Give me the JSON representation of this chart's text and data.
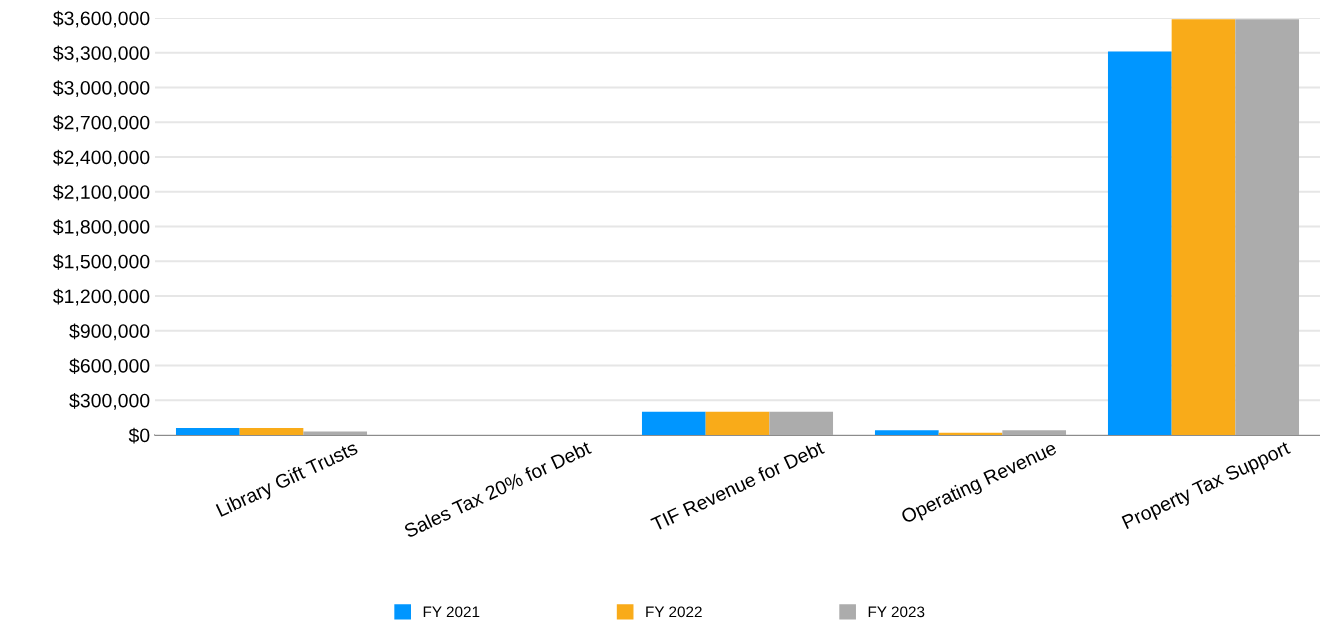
{
  "chart_data": {
    "type": "bar",
    "categories": [
      "Library Gift Trusts",
      "Sales Tax 20% for Debt",
      "TIF Revenue for Debt",
      "Operating Revenue",
      "Property Tax Support"
    ],
    "series": [
      {
        "name": "FY 2021",
        "color": "#0096ff",
        "values": [
          60000,
          0,
          200000,
          40000,
          3310000
        ]
      },
      {
        "name": "FY 2022",
        "color": "#f9ab19",
        "values": [
          60000,
          0,
          200000,
          20000,
          3590000
        ]
      },
      {
        "name": "FY 2023",
        "color": "#acacac",
        "values": [
          30000,
          0,
          200000,
          40000,
          3590000
        ]
      }
    ],
    "ylim": [
      0,
      3600000
    ],
    "yticks": [
      {
        "value": 0,
        "label": "$0"
      },
      {
        "value": 300000,
        "label": "$300,000"
      },
      {
        "value": 600000,
        "label": "$600,000"
      },
      {
        "value": 900000,
        "label": "$900,000"
      },
      {
        "value": 1200000,
        "label": "$1,200,000"
      },
      {
        "value": 1500000,
        "label": "$1,500,000"
      },
      {
        "value": 1800000,
        "label": "$1,800,000"
      },
      {
        "value": 2100000,
        "label": "$2,100,000"
      },
      {
        "value": 2400000,
        "label": "$2,400,000"
      },
      {
        "value": 2700000,
        "label": "$2,700,000"
      },
      {
        "value": 3000000,
        "label": "$3,000,000"
      },
      {
        "value": 3300000,
        "label": "$3,300,000"
      },
      {
        "value": 3600000,
        "label": "$3,600,000"
      }
    ],
    "grid": "y",
    "legend": "bottom"
  }
}
